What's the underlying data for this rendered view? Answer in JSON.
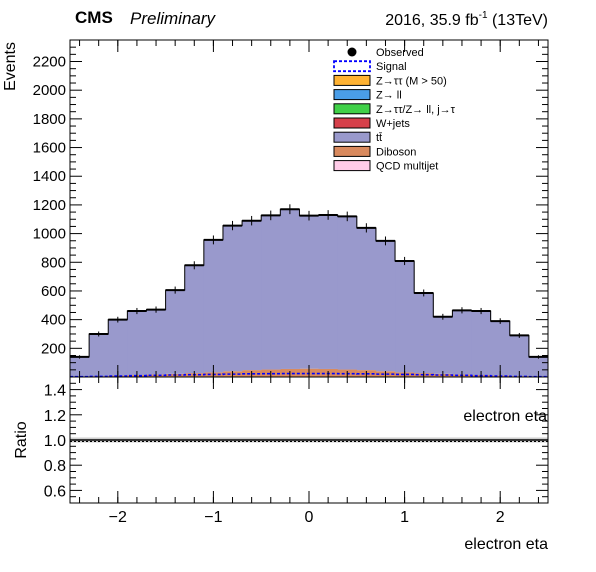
{
  "header": {
    "experiment": "CMS",
    "status": "Preliminary",
    "lumi_prefix": "2016, 35.9 fb",
    "lumi_exp": "-1",
    "lumi_suffix": " (13TeV)"
  },
  "colors": {
    "observed": "#000000",
    "signal": "#0000ff",
    "ztautau": "#ffb232",
    "zll": "#4a9ee8",
    "zfake": "#40d048",
    "wjets": "#d6404a",
    "ttbar": "#9999cc",
    "diboson": "#d98a5e",
    "qcd": "#ffcce8",
    "band": "#bbbbbb"
  },
  "chart_data": [
    {
      "type": "bar",
      "panel": "main",
      "ylabel": "Events",
      "xlim": [
        -2.5,
        2.5
      ],
      "ylim": [
        0,
        2350
      ],
      "yticks": [
        200,
        400,
        600,
        800,
        1000,
        1200,
        1400,
        1600,
        1800,
        2000,
        2200
      ],
      "bin_edges": [
        -2.5,
        -2.3,
        -2.1,
        -1.9,
        -1.7,
        -1.5,
        -1.3,
        -1.1,
        -0.9,
        -0.7,
        -0.5,
        -0.3,
        -0.1,
        0.1,
        0.3,
        0.5,
        0.7,
        0.9,
        1.1,
        1.3,
        1.5,
        1.7,
        1.9,
        2.1,
        2.3,
        2.5
      ],
      "stack": [
        {
          "name": "Diboson",
          "color_key": "diboson",
          "values": [
            3,
            6,
            10,
            14,
            18,
            22,
            27,
            32,
            40,
            48,
            52,
            56,
            58,
            56,
            52,
            48,
            40,
            32,
            27,
            22,
            18,
            14,
            10,
            6,
            3
          ]
        },
        {
          "name": "tt̄",
          "color_key": "ttbar",
          "values": [
            137,
            294,
            390,
            446,
            452,
            584,
            752,
            924,
            1016,
            1042,
            1075,
            1114,
            1067,
            1074,
            1068,
            992,
            909,
            777,
            559,
            398,
            447,
            446,
            380,
            284,
            137
          ]
        }
      ],
      "observed": [
        140,
        300,
        400,
        460,
        470,
        606,
        779,
        956,
        1056,
        1090,
        1127,
        1170,
        1125,
        1130,
        1120,
        1040,
        949,
        809,
        586,
        420,
        465,
        460,
        390,
        290,
        140
      ],
      "signal": [
        2,
        4,
        7,
        9,
        12,
        14,
        16,
        18,
        20,
        22,
        23,
        24,
        24,
        24,
        23,
        22,
        20,
        18,
        16,
        14,
        12,
        9,
        7,
        4,
        2
      ],
      "legend": [
        {
          "label": "Observed",
          "kind": "marker",
          "color_key": "observed"
        },
        {
          "label": "Signal",
          "kind": "dashed",
          "color_key": "signal"
        },
        {
          "label": "Z→ττ (M > 50)",
          "kind": "box",
          "color_key": "ztautau"
        },
        {
          "label": "Z→ ll",
          "kind": "box",
          "color_key": "zll"
        },
        {
          "label": "Z→ττ/Z→ ll, j→τ",
          "kind": "box",
          "color_key": "zfake"
        },
        {
          "label": "W+jets",
          "kind": "box",
          "color_key": "wjets"
        },
        {
          "label": "tt̄",
          "kind": "box",
          "color_key": "ttbar"
        },
        {
          "label": "Diboson",
          "kind": "box",
          "color_key": "diboson"
        },
        {
          "label": "QCD multijet",
          "kind": "box",
          "color_key": "qcd"
        }
      ],
      "legend_position": "top-right"
    },
    {
      "type": "line",
      "panel": "ratio",
      "ylabel": "Ratio",
      "xlabel": "electron eta",
      "annotation": "electron eta",
      "xlim": [
        -2.5,
        2.5
      ],
      "ylim": [
        0.5,
        1.5
      ],
      "yticks": [
        0.6,
        0.8,
        1.0,
        1.2,
        1.4
      ],
      "ytick_labels": [
        "0.6",
        "0.8",
        "1.0",
        "1.2",
        "1.4"
      ],
      "xticks": [
        -2,
        -1,
        0,
        1,
        2
      ],
      "xtick_labels": [
        "−2",
        "−1",
        "0",
        "1",
        "2"
      ],
      "reference_line": 1.0,
      "uncertainty_band": [
        0.98,
        1.02
      ]
    }
  ]
}
